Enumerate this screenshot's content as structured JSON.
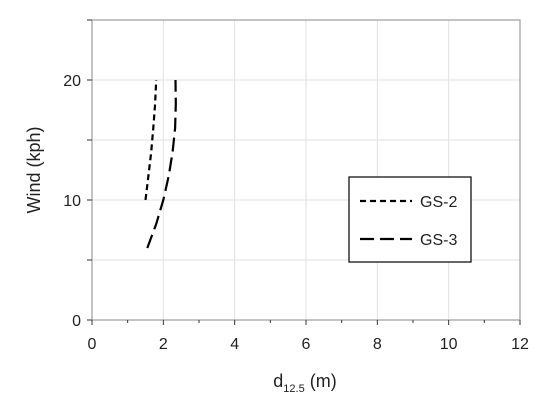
{
  "chart_data": {
    "type": "line",
    "title": "",
    "xlabel": {
      "main": "d",
      "subscript": "12.5",
      "unit": " (m)"
    },
    "ylabel": "Wind (kph)",
    "xlim": [
      0,
      12
    ],
    "ylim": [
      0,
      25
    ],
    "xticks": [
      0,
      2,
      4,
      6,
      8,
      10,
      12
    ],
    "yticks": [
      0,
      10,
      20
    ],
    "grid": true,
    "legend": "right",
    "series": [
      {
        "name": "GS-2",
        "dash": "short",
        "color": "#000000",
        "points": [
          [
            1.5,
            10
          ],
          [
            1.58,
            12
          ],
          [
            1.66,
            14
          ],
          [
            1.72,
            16
          ],
          [
            1.77,
            18
          ],
          [
            1.8,
            20
          ]
        ]
      },
      {
        "name": "GS-3",
        "dash": "long",
        "color": "#000000",
        "points": [
          [
            1.55,
            6
          ],
          [
            1.8,
            8
          ],
          [
            2.0,
            10
          ],
          [
            2.15,
            12
          ],
          [
            2.26,
            14
          ],
          [
            2.33,
            16
          ],
          [
            2.35,
            18
          ],
          [
            2.34,
            20
          ]
        ]
      }
    ]
  }
}
